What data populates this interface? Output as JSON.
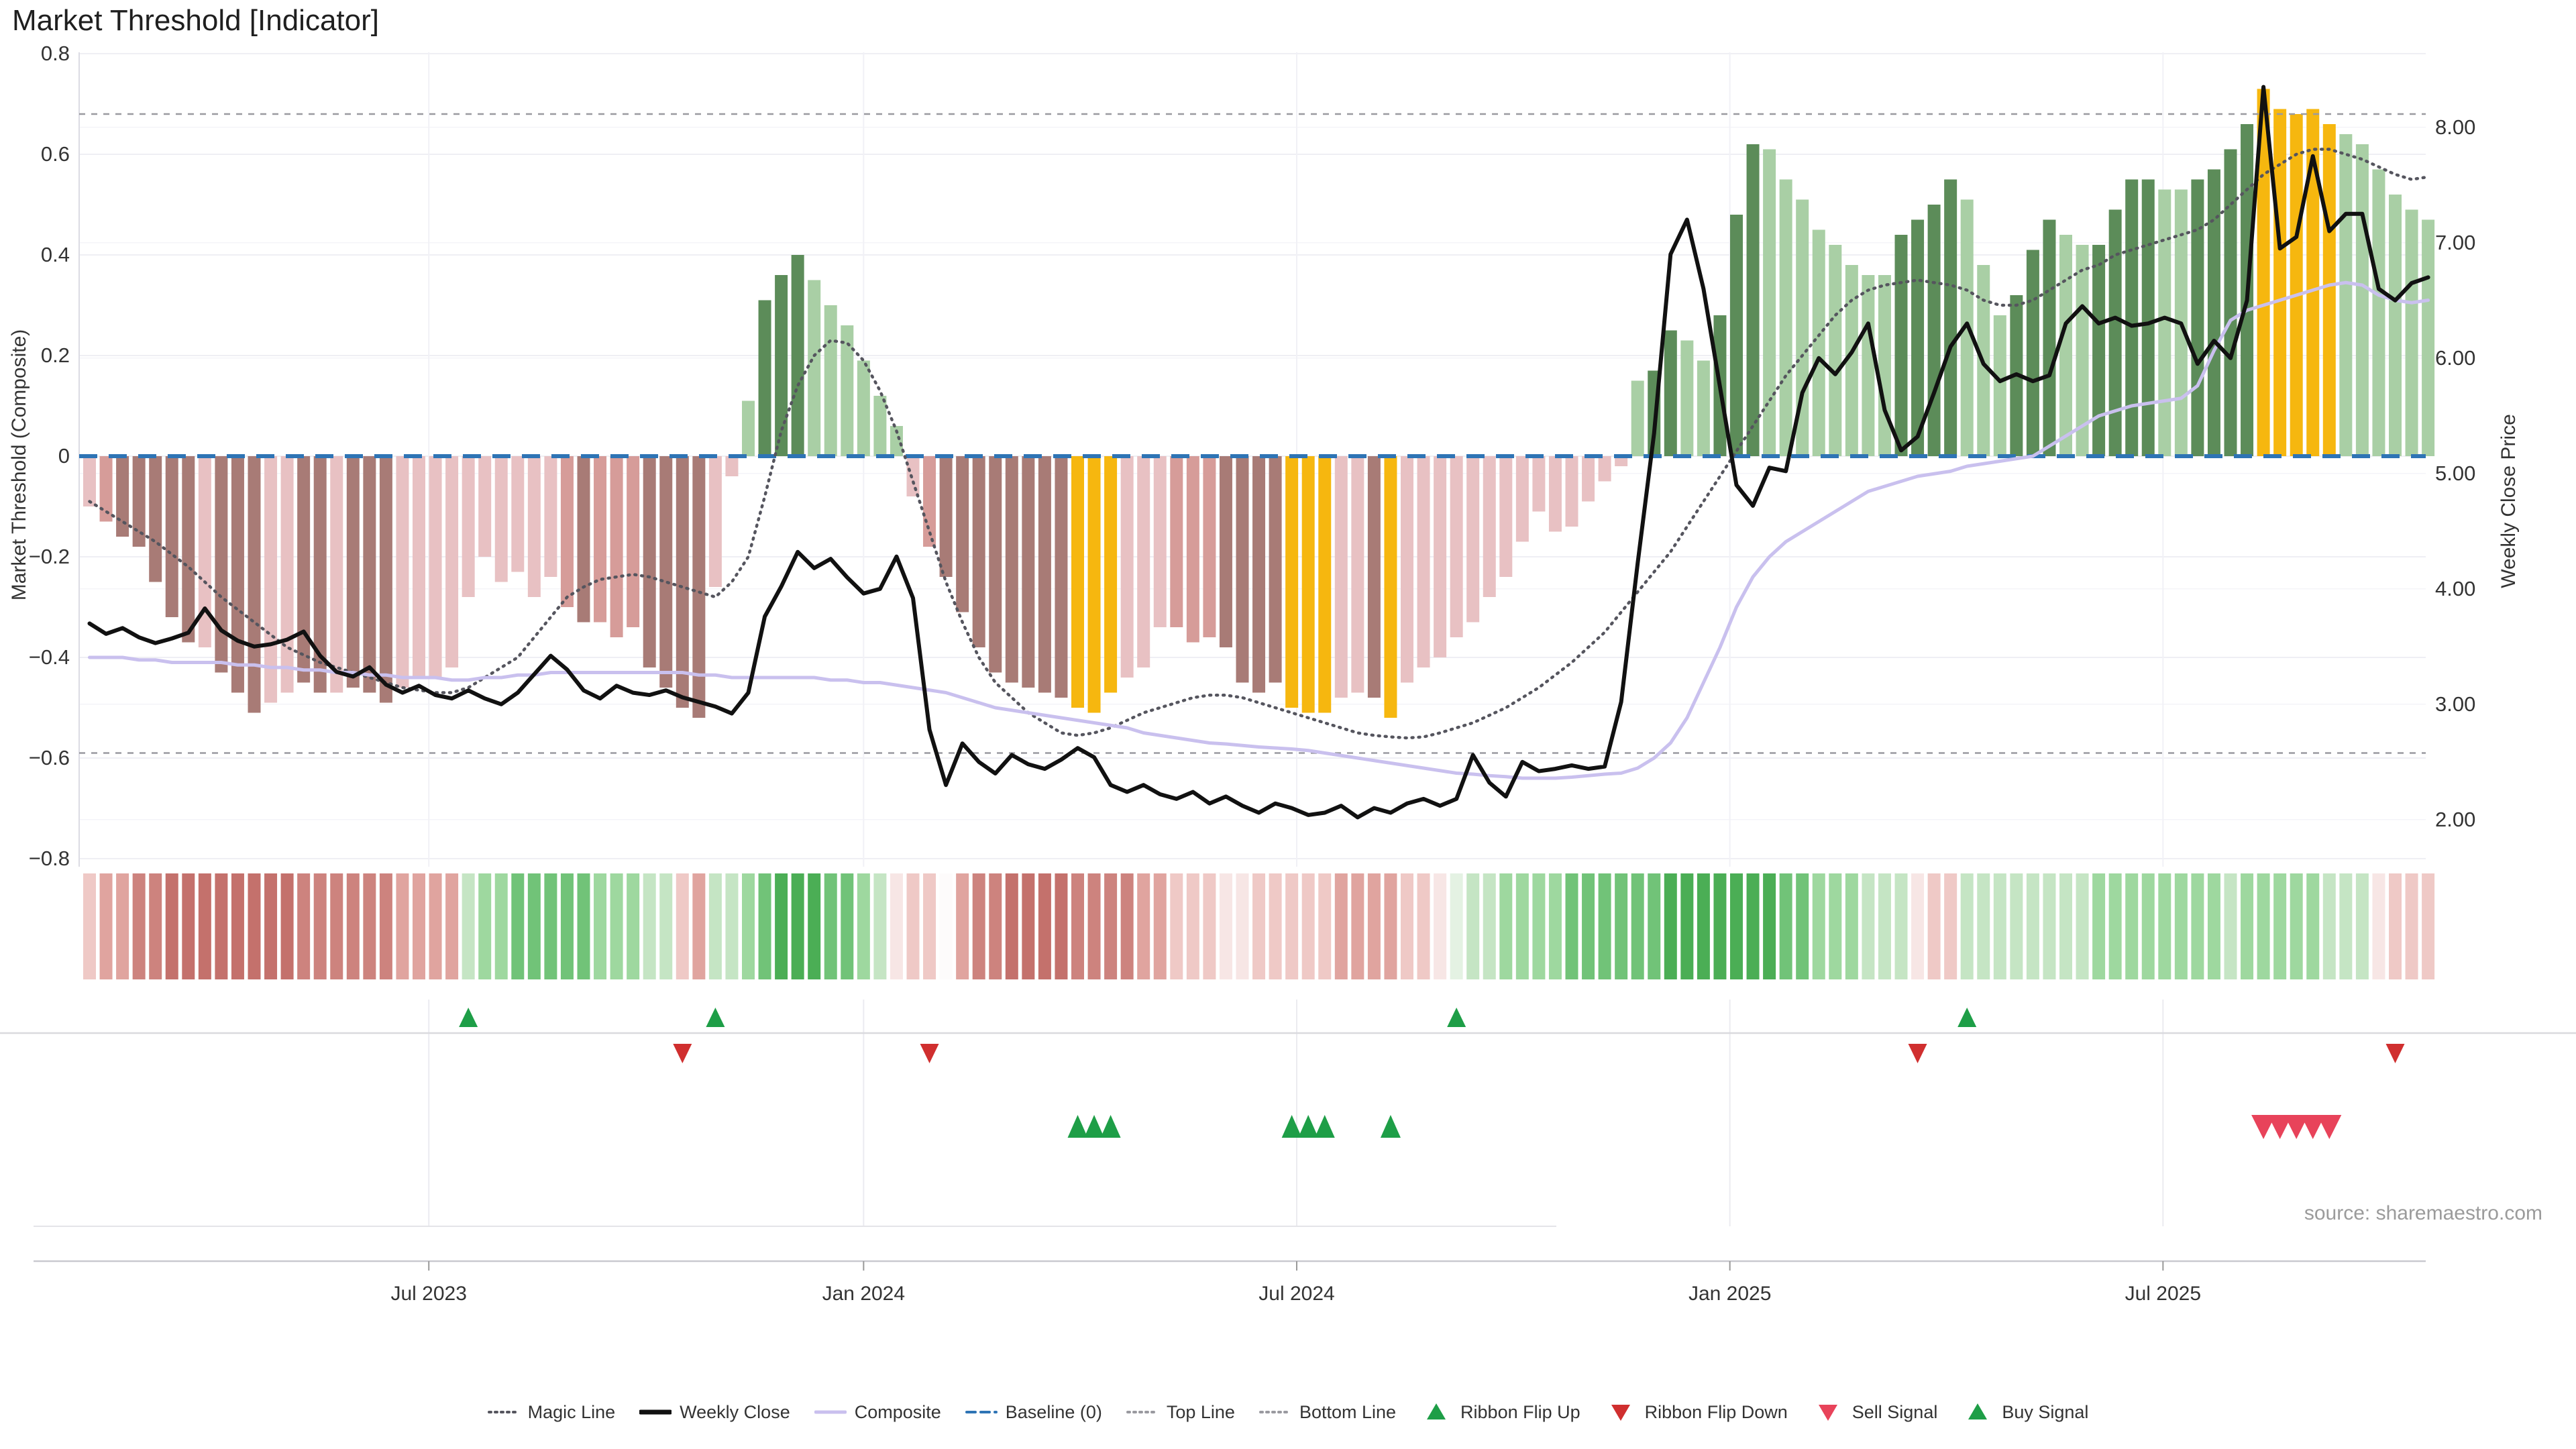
{
  "title": "Market Threshold [Indicator]",
  "source_note": "source: sharemaestro.com",
  "axes": {
    "left_label": "Market Threshold (Composite)",
    "right_label": "Weekly Close Price",
    "left_ticks": [
      "0.8",
      "0.6",
      "0.4",
      "0.2",
      "0",
      "−0.2",
      "−0.4",
      "−0.6",
      "−0.8"
    ],
    "right_ticks": [
      "8.00",
      "7.00",
      "6.00",
      "5.00",
      "4.00",
      "3.00",
      "2.00"
    ],
    "x_ticks": [
      "Jul 2023",
      "Jan 2024",
      "Jul 2024",
      "Jan 2025",
      "Jul 2025"
    ]
  },
  "legend": {
    "items": [
      {
        "label": "Magic Line",
        "type": "dotted",
        "color": "#55555E"
      },
      {
        "label": "Weekly Close",
        "type": "solid-thick",
        "color": "#111111"
      },
      {
        "label": "Composite",
        "type": "solid",
        "color": "#C9C0EE"
      },
      {
        "label": "Baseline (0)",
        "type": "dashed",
        "color": "#2E74B5"
      },
      {
        "label": "Top Line",
        "type": "dotted",
        "color": "#9A9AA0"
      },
      {
        "label": "Bottom Line",
        "type": "dotted",
        "color": "#9A9AA0"
      },
      {
        "label": "Ribbon Flip Up",
        "type": "triangle-up",
        "color": "#1E9E47"
      },
      {
        "label": "Ribbon Flip Down",
        "type": "triangle-down",
        "color": "#D02F2F"
      },
      {
        "label": "Sell Signal",
        "type": "triangle-down",
        "color": "#E8435A"
      },
      {
        "label": "Buy Signal",
        "type": "triangle-up",
        "color": "#1E9E47"
      }
    ]
  },
  "colors": {
    "weekly_close": "#111111",
    "composite": "#C9C0EE",
    "magic_line": "#55555E",
    "baseline": "#2E74B5",
    "band_lines": "#9A9AA0",
    "grid": "#EFEFF4",
    "axis_text": "#333333",
    "bar_palette": {
      "pl": "#E8C1C3",
      "pm": "#D69C99",
      "pd": "#A87B76",
      "gl": "#A9CFA5",
      "gd": "#5C8C59",
      "au": "#F6B70F"
    },
    "ribbon_palette": {
      "r0": "#F7E6E5",
      "r1": "#EFC9C6",
      "r2": "#E0A49F",
      "r3": "#CD837E",
      "r4": "#C4716C",
      "g0": "#E4F2E3",
      "g1": "#C5E5C4",
      "g2": "#9ED89F",
      "g3": "#71C378",
      "g4": "#4BAE55",
      "w": "#FDFBFB"
    },
    "signal_up": "#1E9E47",
    "signal_down": "#D02F2F",
    "signal_sell": "#E8435A"
  },
  "chart_data": {
    "type": "bar",
    "title": "Market Threshold [Indicator]",
    "xlabel": "",
    "ylabel_left": "Market Threshold (Composite)",
    "ylabel_right": "Weekly Close Price",
    "left_range": [
      -0.8,
      0.8
    ],
    "left_tick_step": 0.2,
    "right_range": [
      2.0,
      8.0
    ],
    "right_tick_step": 1.0,
    "baseline": 0,
    "top_line": 0.68,
    "bottom_line": -0.59,
    "x_tick_labels": [
      "Jul 2023",
      "Jan 2024",
      "Jul 2024",
      "Jan 2025",
      "Jul 2025"
    ],
    "x_tick_week_index": [
      20.6,
      47.0,
      73.3,
      99.6,
      125.9
    ],
    "weeks": 143,
    "threshold_bars": {
      "values": [
        -0.1,
        -0.13,
        -0.16,
        -0.18,
        -0.25,
        -0.32,
        -0.37,
        -0.38,
        -0.43,
        -0.47,
        -0.51,
        -0.49,
        -0.47,
        -0.45,
        -0.47,
        -0.47,
        -0.46,
        -0.47,
        -0.49,
        -0.46,
        -0.44,
        -0.44,
        -0.42,
        -0.28,
        -0.2,
        -0.25,
        -0.23,
        -0.28,
        -0.24,
        -0.3,
        -0.33,
        -0.33,
        -0.36,
        -0.34,
        -0.42,
        -0.46,
        -0.5,
        -0.52,
        -0.26,
        -0.04,
        0.11,
        0.31,
        0.36,
        0.4,
        0.35,
        0.3,
        0.26,
        0.19,
        0.12,
        0.06,
        -0.08,
        -0.18,
        -0.24,
        -0.31,
        -0.38,
        -0.43,
        -0.45,
        -0.46,
        -0.47,
        -0.48,
        -0.5,
        -0.51,
        -0.47,
        -0.44,
        -0.42,
        -0.34,
        -0.34,
        -0.37,
        -0.36,
        -0.38,
        -0.45,
        -0.47,
        -0.45,
        -0.5,
        -0.51,
        -0.51,
        -0.48,
        -0.47,
        -0.48,
        -0.52,
        -0.45,
        -0.42,
        -0.4,
        -0.36,
        -0.33,
        -0.28,
        -0.24,
        -0.17,
        -0.11,
        -0.15,
        -0.14,
        -0.09,
        -0.05,
        -0.02,
        0.15,
        0.17,
        0.25,
        0.23,
        0.19,
        0.28,
        0.48,
        0.62,
        0.61,
        0.55,
        0.51,
        0.45,
        0.42,
        0.38,
        0.36,
        0.36,
        0.44,
        0.47,
        0.5,
        0.55,
        0.51,
        0.38,
        0.28,
        0.32,
        0.41,
        0.47,
        0.44,
        0.42,
        0.42,
        0.49,
        0.55,
        0.55,
        0.53,
        0.53,
        0.55,
        0.57,
        0.61,
        0.66,
        0.73,
        0.69,
        0.68,
        0.69,
        0.66,
        0.64,
        0.62,
        0.57,
        0.52,
        0.49,
        0.47
      ],
      "color_class": [
        "pl",
        "pm",
        "pd",
        "pd",
        "pd",
        "pd",
        "pd",
        "pl",
        "pd",
        "pd",
        "pd",
        "pl",
        "pl",
        "pd",
        "pd",
        "pl",
        "pd",
        "pd",
        "pd",
        "pl",
        "pl",
        "pl",
        "pl",
        "pl",
        "pl",
        "pl",
        "pl",
        "pl",
        "pl",
        "pm",
        "pd",
        "pm",
        "pm",
        "pm",
        "pd",
        "pd",
        "pd",
        "pd",
        "pl",
        "pl",
        "gl",
        "gd",
        "gd",
        "gd",
        "gl",
        "gl",
        "gl",
        "gl",
        "gl",
        "gl",
        "pl",
        "pm",
        "pd",
        "pd",
        "pd",
        "pd",
        "pd",
        "pd",
        "pd",
        "pd",
        "au",
        "au",
        "au",
        "pl",
        "pl",
        "pl",
        "pm",
        "pm",
        "pm",
        "pd",
        "pd",
        "pd",
        "pd",
        "au",
        "au",
        "au",
        "pl",
        "pl",
        "pd",
        "au",
        "pl",
        "pl",
        "pl",
        "pl",
        "pl",
        "pl",
        "pl",
        "pl",
        "pl",
        "pl",
        "pl",
        "pl",
        "pl",
        "pl",
        "gl",
        "gd",
        "gd",
        "gl",
        "gl",
        "gd",
        "gd",
        "gd",
        "gl",
        "gl",
        "gl",
        "gl",
        "gl",
        "gl",
        "gl",
        "gl",
        "gd",
        "gd",
        "gd",
        "gd",
        "gl",
        "gl",
        "gl",
        "gd",
        "gd",
        "gd",
        "gl",
        "gl",
        "gd",
        "gd",
        "gd",
        "gd",
        "gl",
        "gl",
        "gd",
        "gd",
        "gd",
        "gd",
        "au",
        "au",
        "au",
        "au",
        "au",
        "gl",
        "gl",
        "gl",
        "gl",
        "gl",
        "gl"
      ]
    },
    "weekly_close": [
      3.7,
      3.61,
      3.66,
      3.58,
      3.53,
      3.57,
      3.62,
      3.83,
      3.64,
      3.55,
      3.5,
      3.52,
      3.56,
      3.63,
      3.42,
      3.28,
      3.24,
      3.32,
      3.17,
      3.1,
      3.16,
      3.08,
      3.05,
      3.12,
      3.05,
      3.0,
      3.1,
      3.26,
      3.42,
      3.3,
      3.12,
      3.05,
      3.16,
      3.1,
      3.08,
      3.12,
      3.06,
      3.02,
      2.98,
      2.92,
      3.1,
      3.76,
      4.02,
      4.32,
      4.18,
      4.26,
      4.1,
      3.96,
      4.0,
      4.28,
      3.92,
      2.78,
      2.3,
      2.66,
      2.5,
      2.4,
      2.56,
      2.48,
      2.44,
      2.52,
      2.62,
      2.54,
      2.3,
      2.24,
      2.3,
      2.22,
      2.18,
      2.24,
      2.14,
      2.2,
      2.12,
      2.06,
      2.14,
      2.1,
      2.04,
      2.06,
      2.12,
      2.02,
      2.1,
      2.06,
      2.14,
      2.18,
      2.12,
      2.18,
      2.56,
      2.32,
      2.2,
      2.5,
      2.42,
      2.44,
      2.47,
      2.44,
      2.46,
      3.02,
      4.22,
      5.35,
      6.9,
      7.2,
      6.6,
      5.75,
      4.9,
      4.72,
      5.05,
      5.02,
      5.7,
      6.0,
      5.86,
      6.05,
      6.3,
      5.55,
      5.2,
      5.32,
      5.7,
      6.1,
      6.3,
      5.95,
      5.8,
      5.86,
      5.8,
      5.85,
      6.3,
      6.45,
      6.3,
      6.35,
      6.28,
      6.3,
      6.35,
      6.3,
      5.95,
      6.15,
      6.0,
      6.5,
      8.35,
      6.95,
      7.05,
      7.75,
      7.1,
      7.25,
      7.25,
      6.6,
      6.5,
      6.65,
      6.7
    ],
    "composite": [
      -0.4,
      -0.4,
      -0.4,
      -0.405,
      -0.405,
      -0.41,
      -0.41,
      -0.41,
      -0.41,
      -0.415,
      -0.415,
      -0.42,
      -0.42,
      -0.425,
      -0.425,
      -0.43,
      -0.43,
      -0.435,
      -0.435,
      -0.44,
      -0.44,
      -0.44,
      -0.445,
      -0.445,
      -0.44,
      -0.44,
      -0.435,
      -0.435,
      -0.43,
      -0.43,
      -0.43,
      -0.43,
      -0.43,
      -0.43,
      -0.43,
      -0.43,
      -0.43,
      -0.435,
      -0.435,
      -0.44,
      -0.44,
      -0.44,
      -0.44,
      -0.44,
      -0.44,
      -0.445,
      -0.445,
      -0.45,
      -0.45,
      -0.455,
      -0.46,
      -0.465,
      -0.47,
      -0.48,
      -0.49,
      -0.5,
      -0.505,
      -0.51,
      -0.515,
      -0.52,
      -0.525,
      -0.53,
      -0.535,
      -0.54,
      -0.55,
      -0.555,
      -0.56,
      -0.565,
      -0.57,
      -0.572,
      -0.575,
      -0.578,
      -0.58,
      -0.582,
      -0.585,
      -0.59,
      -0.595,
      -0.6,
      -0.605,
      -0.61,
      -0.615,
      -0.62,
      -0.625,
      -0.63,
      -0.632,
      -0.635,
      -0.637,
      -0.64,
      -0.64,
      -0.64,
      -0.638,
      -0.635,
      -0.632,
      -0.63,
      -0.62,
      -0.6,
      -0.57,
      -0.52,
      -0.45,
      -0.38,
      -0.3,
      -0.24,
      -0.2,
      -0.17,
      -0.15,
      -0.13,
      -0.11,
      -0.09,
      -0.07,
      -0.06,
      -0.05,
      -0.04,
      -0.035,
      -0.03,
      -0.02,
      -0.015,
      -0.01,
      -0.005,
      0.0,
      0.02,
      0.04,
      0.06,
      0.08,
      0.09,
      0.1,
      0.105,
      0.11,
      0.115,
      0.14,
      0.21,
      0.27,
      0.29,
      0.3,
      0.31,
      0.32,
      0.33,
      0.34,
      0.345,
      0.34,
      0.32,
      0.31,
      0.305,
      0.31
    ],
    "magic_line": [
      -0.09,
      -0.11,
      -0.13,
      -0.15,
      -0.17,
      -0.195,
      -0.22,
      -0.25,
      -0.28,
      -0.305,
      -0.33,
      -0.355,
      -0.38,
      -0.395,
      -0.41,
      -0.42,
      -0.43,
      -0.44,
      -0.45,
      -0.46,
      -0.465,
      -0.47,
      -0.47,
      -0.46,
      -0.44,
      -0.42,
      -0.4,
      -0.36,
      -0.32,
      -0.28,
      -0.26,
      -0.245,
      -0.24,
      -0.235,
      -0.24,
      -0.25,
      -0.26,
      -0.27,
      -0.28,
      -0.25,
      -0.2,
      -0.08,
      0.05,
      0.14,
      0.2,
      0.23,
      0.225,
      0.19,
      0.13,
      0.05,
      -0.05,
      -0.15,
      -0.25,
      -0.33,
      -0.4,
      -0.45,
      -0.48,
      -0.51,
      -0.53,
      -0.55,
      -0.555,
      -0.55,
      -0.54,
      -0.525,
      -0.51,
      -0.5,
      -0.49,
      -0.48,
      -0.475,
      -0.475,
      -0.48,
      -0.49,
      -0.5,
      -0.51,
      -0.52,
      -0.53,
      -0.54,
      -0.55,
      -0.555,
      -0.558,
      -0.56,
      -0.558,
      -0.55,
      -0.54,
      -0.53,
      -0.515,
      -0.5,
      -0.48,
      -0.46,
      -0.435,
      -0.41,
      -0.38,
      -0.35,
      -0.31,
      -0.27,
      -0.23,
      -0.19,
      -0.14,
      -0.09,
      -0.04,
      0.01,
      0.06,
      0.11,
      0.16,
      0.2,
      0.24,
      0.28,
      0.31,
      0.33,
      0.34,
      0.345,
      0.35,
      0.345,
      0.34,
      0.33,
      0.31,
      0.3,
      0.3,
      0.31,
      0.33,
      0.35,
      0.37,
      0.38,
      0.4,
      0.41,
      0.42,
      0.43,
      0.44,
      0.45,
      0.47,
      0.5,
      0.53,
      0.56,
      0.58,
      0.6,
      0.61,
      0.61,
      0.6,
      0.59,
      0.575,
      0.56,
      0.55,
      0.555
    ],
    "ribbon": [
      "r1",
      "r2",
      "r2",
      "r3",
      "r3",
      "r4",
      "r4",
      "r4",
      "r4",
      "r4",
      "r4",
      "r4",
      "r4",
      "r3",
      "r3",
      "r3",
      "r3",
      "r3",
      "r3",
      "r2",
      "r2",
      "r2",
      "r2",
      "g1",
      "g2",
      "g2",
      "g3",
      "g3",
      "g3",
      "g3",
      "g3",
      "g2",
      "g2",
      "g2",
      "g1",
      "g1",
      "r1",
      "r2",
      "g1",
      "g1",
      "g2",
      "g3",
      "g4",
      "g4",
      "g4",
      "g3",
      "g3",
      "g2",
      "g1",
      "r0",
      "r1",
      "r1",
      "w",
      "r2",
      "r3",
      "r3",
      "r4",
      "r4",
      "r4",
      "r4",
      "r3",
      "r3",
      "r3",
      "r3",
      "r2",
      "r2",
      "r1",
      "r1",
      "r1",
      "r0",
      "r0",
      "r1",
      "r1",
      "r1",
      "r1",
      "r1",
      "r2",
      "r2",
      "r2",
      "r2",
      "r1",
      "r1",
      "r0",
      "g0",
      "g1",
      "g1",
      "g2",
      "g2",
      "g2",
      "g2",
      "g3",
      "g3",
      "g3",
      "g3",
      "g3",
      "g3",
      "g4",
      "g4",
      "g4",
      "g4",
      "g4",
      "g4",
      "g4",
      "g3",
      "g3",
      "g2",
      "g2",
      "g2",
      "g1",
      "g1",
      "g1",
      "r0",
      "r1",
      "r1",
      "g1",
      "g1",
      "g1",
      "g1",
      "g1",
      "g1",
      "g1",
      "g1",
      "g2",
      "g2",
      "g2",
      "g2",
      "g2",
      "g2",
      "g2",
      "g2",
      "g1",
      "g2",
      "g2",
      "g2",
      "g2",
      "g2",
      "g1",
      "g1",
      "g1",
      "r0",
      "r1",
      "r1",
      "r1"
    ],
    "signals": {
      "ribbon_flip_up_weeks": [
        23,
        38,
        83,
        114
      ],
      "ribbon_flip_down_weeks": [
        36,
        51,
        111,
        140
      ],
      "buy_signal_weeks": [
        60,
        61,
        62,
        73,
        74,
        75,
        79
      ],
      "sell_signal_weeks": [
        132,
        133,
        134,
        135,
        136
      ]
    },
    "legend_position": "bottom",
    "grid": true
  }
}
